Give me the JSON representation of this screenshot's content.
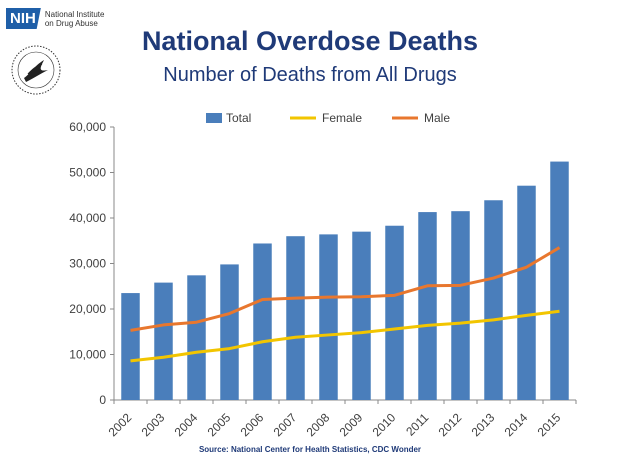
{
  "logo": {
    "badge": "NIH",
    "line1": "National Institute",
    "line2": "on Drug Abuse"
  },
  "title": "National Overdose Deaths",
  "subtitle": "Number of Deaths from All Drugs",
  "source": "Source: National Center for Health Statistics, CDC Wonder",
  "colors": {
    "total": "#4a7ebb",
    "female": "#f2c500",
    "male": "#e8772e",
    "title": "#1f3a78",
    "axis": "#404040"
  },
  "chart_data": {
    "type": "bar",
    "categories": [
      "2002",
      "2003",
      "2004",
      "2005",
      "2006",
      "2007",
      "2008",
      "2009",
      "2010",
      "2011",
      "2012",
      "2013",
      "2014",
      "2015"
    ],
    "series": [
      {
        "name": "Total",
        "kind": "bar",
        "values": [
          23500,
          25800,
          27400,
          29800,
          34400,
          36000,
          36400,
          37000,
          38300,
          41300,
          41500,
          43900,
          47100,
          52400
        ]
      },
      {
        "name": "Female",
        "kind": "line",
        "values": [
          8600,
          9400,
          10500,
          11300,
          12800,
          13800,
          14300,
          14800,
          15600,
          16400,
          16900,
          17600,
          18600,
          19500
        ]
      },
      {
        "name": "Male",
        "kind": "line",
        "values": [
          15300,
          16500,
          17100,
          19000,
          22100,
          22400,
          22600,
          22700,
          23000,
          25100,
          25200,
          26800,
          29200,
          33500
        ]
      }
    ],
    "yticks": [
      "0",
      "10,000",
      "20,000",
      "30,000",
      "40,000",
      "50,000",
      "60,000"
    ],
    "ylim": [
      0,
      60000
    ],
    "legend_position": "top"
  }
}
